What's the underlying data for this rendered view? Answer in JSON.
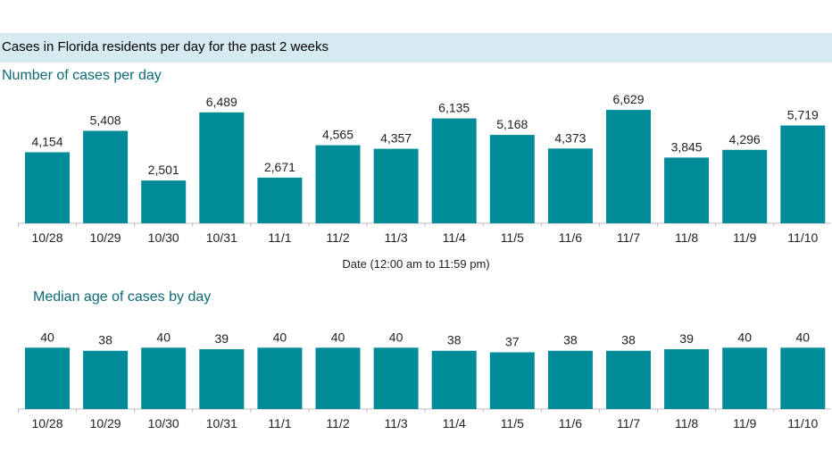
{
  "header": {
    "title": "Cases in Florida residents per day for the past 2 weeks"
  },
  "colors": {
    "bar": "#008b98",
    "header_band": "#d6eaf2",
    "section_title": "#0b6a78"
  },
  "chart_data": [
    {
      "type": "bar",
      "title": "Number of cases per day",
      "xlabel": "Date (12:00 am to 11:59 pm)",
      "ylabel": "",
      "categories": [
        "10/28",
        "10/29",
        "10/30",
        "10/31",
        "11/1",
        "11/2",
        "11/3",
        "11/4",
        "11/5",
        "11/6",
        "11/7",
        "11/8",
        "11/9",
        "11/10"
      ],
      "values": [
        4154,
        5408,
        2501,
        6489,
        2671,
        4565,
        4357,
        6135,
        5168,
        4373,
        6629,
        3845,
        4296,
        5719
      ],
      "value_labels": [
        "4,154",
        "5,408",
        "2,501",
        "6,489",
        "2,671",
        "4,565",
        "4,357",
        "6,135",
        "5,168",
        "4,373",
        "6,629",
        "3,845",
        "4,296",
        "5,719"
      ],
      "ylim": [
        0,
        7000
      ],
      "grid": false
    },
    {
      "type": "bar",
      "title": "Median age of cases by day",
      "xlabel": "",
      "ylabel": "",
      "categories": [
        "10/28",
        "10/29",
        "10/30",
        "10/31",
        "11/1",
        "11/2",
        "11/3",
        "11/4",
        "11/5",
        "11/6",
        "11/7",
        "11/8",
        "11/9",
        "11/10"
      ],
      "values": [
        40,
        38,
        40,
        39,
        40,
        40,
        40,
        38,
        37,
        38,
        38,
        39,
        40,
        40
      ],
      "value_labels": [
        "40",
        "38",
        "40",
        "39",
        "40",
        "40",
        "40",
        "38",
        "37",
        "38",
        "38",
        "39",
        "40",
        "40"
      ],
      "ylim": [
        0,
        46
      ],
      "grid": false
    }
  ]
}
